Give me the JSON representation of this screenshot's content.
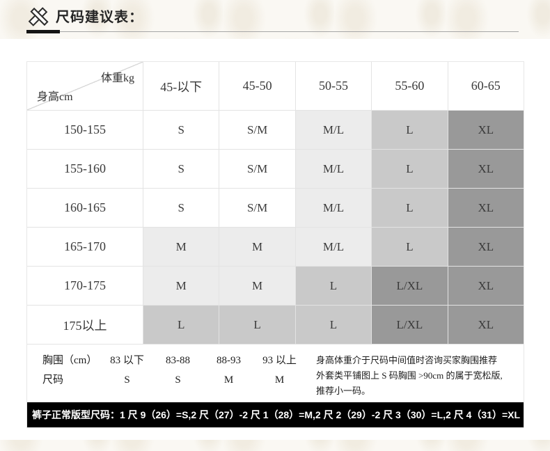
{
  "page": {
    "title": "尺码建议表："
  },
  "table": {
    "corner": {
      "weight": "体重kg",
      "height": "身高cm"
    },
    "columns": [
      "45-以下",
      "45-50",
      "50-55",
      "55-60",
      "60-65"
    ],
    "rows": [
      {
        "label": "150-155",
        "cells": [
          {
            "text": "S",
            "shade": "none"
          },
          {
            "text": "S/M",
            "shade": "none"
          },
          {
            "text": "M/L",
            "shade": "light"
          },
          {
            "text": "L",
            "shade": "mid"
          },
          {
            "text": "XL",
            "shade": "dark"
          }
        ]
      },
      {
        "label": "155-160",
        "cells": [
          {
            "text": "S",
            "shade": "none"
          },
          {
            "text": "S/M",
            "shade": "none"
          },
          {
            "text": "M/L",
            "shade": "light"
          },
          {
            "text": "L",
            "shade": "mid"
          },
          {
            "text": "XL",
            "shade": "dark"
          }
        ]
      },
      {
        "label": "160-165",
        "cells": [
          {
            "text": "S",
            "shade": "none"
          },
          {
            "text": "S/M",
            "shade": "none"
          },
          {
            "text": "M/L",
            "shade": "light"
          },
          {
            "text": "L",
            "shade": "mid"
          },
          {
            "text": "XL",
            "shade": "dark"
          }
        ]
      },
      {
        "label": "165-170",
        "cells": [
          {
            "text": "M",
            "shade": "light"
          },
          {
            "text": "M",
            "shade": "light"
          },
          {
            "text": "M/L",
            "shade": "light"
          },
          {
            "text": "L",
            "shade": "mid"
          },
          {
            "text": "XL",
            "shade": "dark"
          }
        ]
      },
      {
        "label": "170-175",
        "cells": [
          {
            "text": "M",
            "shade": "light"
          },
          {
            "text": "M",
            "shade": "light"
          },
          {
            "text": "L",
            "shade": "mid"
          },
          {
            "text": "L/XL",
            "shade": "dark"
          },
          {
            "text": "XL",
            "shade": "dark"
          }
        ]
      },
      {
        "label": "175以上",
        "cells": [
          {
            "text": "L",
            "shade": "mid"
          },
          {
            "text": "L",
            "shade": "mid"
          },
          {
            "text": "L",
            "shade": "mid"
          },
          {
            "text": "L/XL",
            "shade": "dark"
          },
          {
            "text": "XL",
            "shade": "dark"
          }
        ]
      }
    ]
  },
  "chest": {
    "label_line1": "胸围（cm）",
    "label_line2": "尺码",
    "columns": [
      {
        "range": "83 以下",
        "size": "S"
      },
      {
        "range": "83-88",
        "size": "S"
      },
      {
        "range": "88-93",
        "size": "M"
      },
      {
        "range": "93 以上",
        "size": "M"
      }
    ],
    "notes": [
      "身高体重介于尺码中间值时咨询买家胸围推荐",
      "外套类平铺图上 S 码胸围 >90cm 的属于宽松版,",
      "推荐小一码。"
    ]
  },
  "bar": {
    "text": "裤子正常版型尺码：1 尺 9（26）=S,2 尺（27）-2 尺 1（28）=M,2 尺 2（29）-2 尺 3（30）=L,2 尺 4（31）=XL"
  },
  "colors": {
    "shade_light": "#ececec",
    "shade_mid": "#c9c9c9",
    "shade_dark": "#999999",
    "bar_background": "#000000",
    "accent_line": "#141414"
  }
}
